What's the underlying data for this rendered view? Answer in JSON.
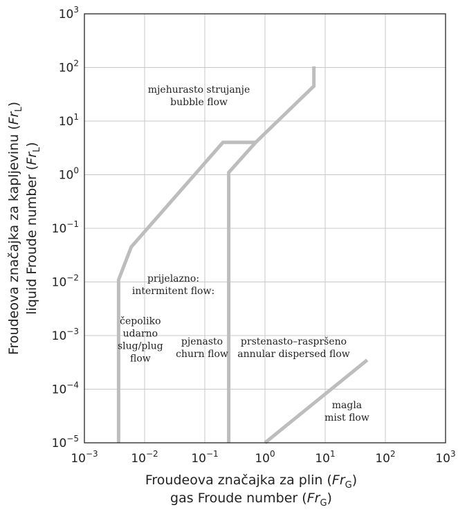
{
  "chart_data": {
    "type": "line",
    "x_scale": "log",
    "y_scale": "log",
    "xlim": [
      0.001,
      1000
    ],
    "ylim": [
      1e-05,
      1000
    ],
    "grid": true,
    "x_ticks": [
      {
        "value": 0.001,
        "base": "10",
        "exp": "−3"
      },
      {
        "value": 0.01,
        "base": "10",
        "exp": "−2"
      },
      {
        "value": 0.1,
        "base": "10",
        "exp": "−1"
      },
      {
        "value": 1,
        "base": "10",
        "exp": "0"
      },
      {
        "value": 10,
        "base": "10",
        "exp": "1"
      },
      {
        "value": 100,
        "base": "10",
        "exp": "2"
      },
      {
        "value": 1000,
        "base": "10",
        "exp": "3"
      }
    ],
    "y_ticks": [
      {
        "value": 1e-05,
        "base": "10",
        "exp": "−5"
      },
      {
        "value": 0.0001,
        "base": "10",
        "exp": "−4"
      },
      {
        "value": 0.001,
        "base": "10",
        "exp": "−3"
      },
      {
        "value": 0.01,
        "base": "10",
        "exp": "−2"
      },
      {
        "value": 0.1,
        "base": "10",
        "exp": "−1"
      },
      {
        "value": 1,
        "base": "10",
        "exp": "0"
      },
      {
        "value": 10,
        "base": "10",
        "exp": "1"
      },
      {
        "value": 100,
        "base": "10",
        "exp": "2"
      },
      {
        "value": 1000,
        "base": "10",
        "exp": "3"
      }
    ],
    "xlabel": {
      "line1": "Froudeova značajka za plin (",
      "line2": "gas Froude number (",
      "symbol": "Fr",
      "subscript": "G",
      "close": ")"
    },
    "ylabel": {
      "line1": "Froudeova značajka za kapljevinu (",
      "line2": "liquid Froude number (",
      "symbol": "Fr",
      "subscript": "L",
      "close": ")"
    },
    "series": [
      {
        "id": "bubble-boundary",
        "points": [
          [
            0.0037,
            1e-05
          ],
          [
            0.0037,
            0.011
          ],
          [
            0.006,
            0.045
          ],
          [
            0.2,
            4
          ],
          [
            0.7,
            4
          ]
        ]
      },
      {
        "id": "churn-annular-boundary",
        "points": [
          [
            0.25,
            1e-05
          ],
          [
            0.25,
            1.1
          ],
          [
            0.7,
            4
          ],
          [
            6.5,
            45
          ],
          [
            6.5,
            105
          ]
        ]
      },
      {
        "id": "mist-boundary",
        "points": [
          [
            1,
            1e-05
          ],
          [
            50,
            0.00035
          ]
        ]
      }
    ],
    "region_labels": [
      {
        "id": "bubble",
        "lines": [
          "mjehurasto strujanje",
          "bubble flow"
        ],
        "x": 0.08,
        "y": 30
      },
      {
        "id": "intermittent",
        "lines": [
          "prijelazno:",
          "intermitent flow:"
        ],
        "x": 0.03,
        "y": 0.009
      },
      {
        "id": "slug",
        "lines": [
          "čepoliko",
          "udarno",
          "slug/plug",
          "flow"
        ],
        "x": 0.0085,
        "y": 0.00085
      },
      {
        "id": "churn",
        "lines": [
          "pjenasto",
          "churn flow"
        ],
        "x": 0.09,
        "y": 0.0006
      },
      {
        "id": "annular",
        "lines": [
          "prstenasto–raspršeno",
          "annular dispersed flow"
        ],
        "x": 3,
        "y": 0.0006
      },
      {
        "id": "mist",
        "lines": [
          "magla",
          "mist flow"
        ],
        "x": 23,
        "y": 3.9e-05
      }
    ]
  }
}
